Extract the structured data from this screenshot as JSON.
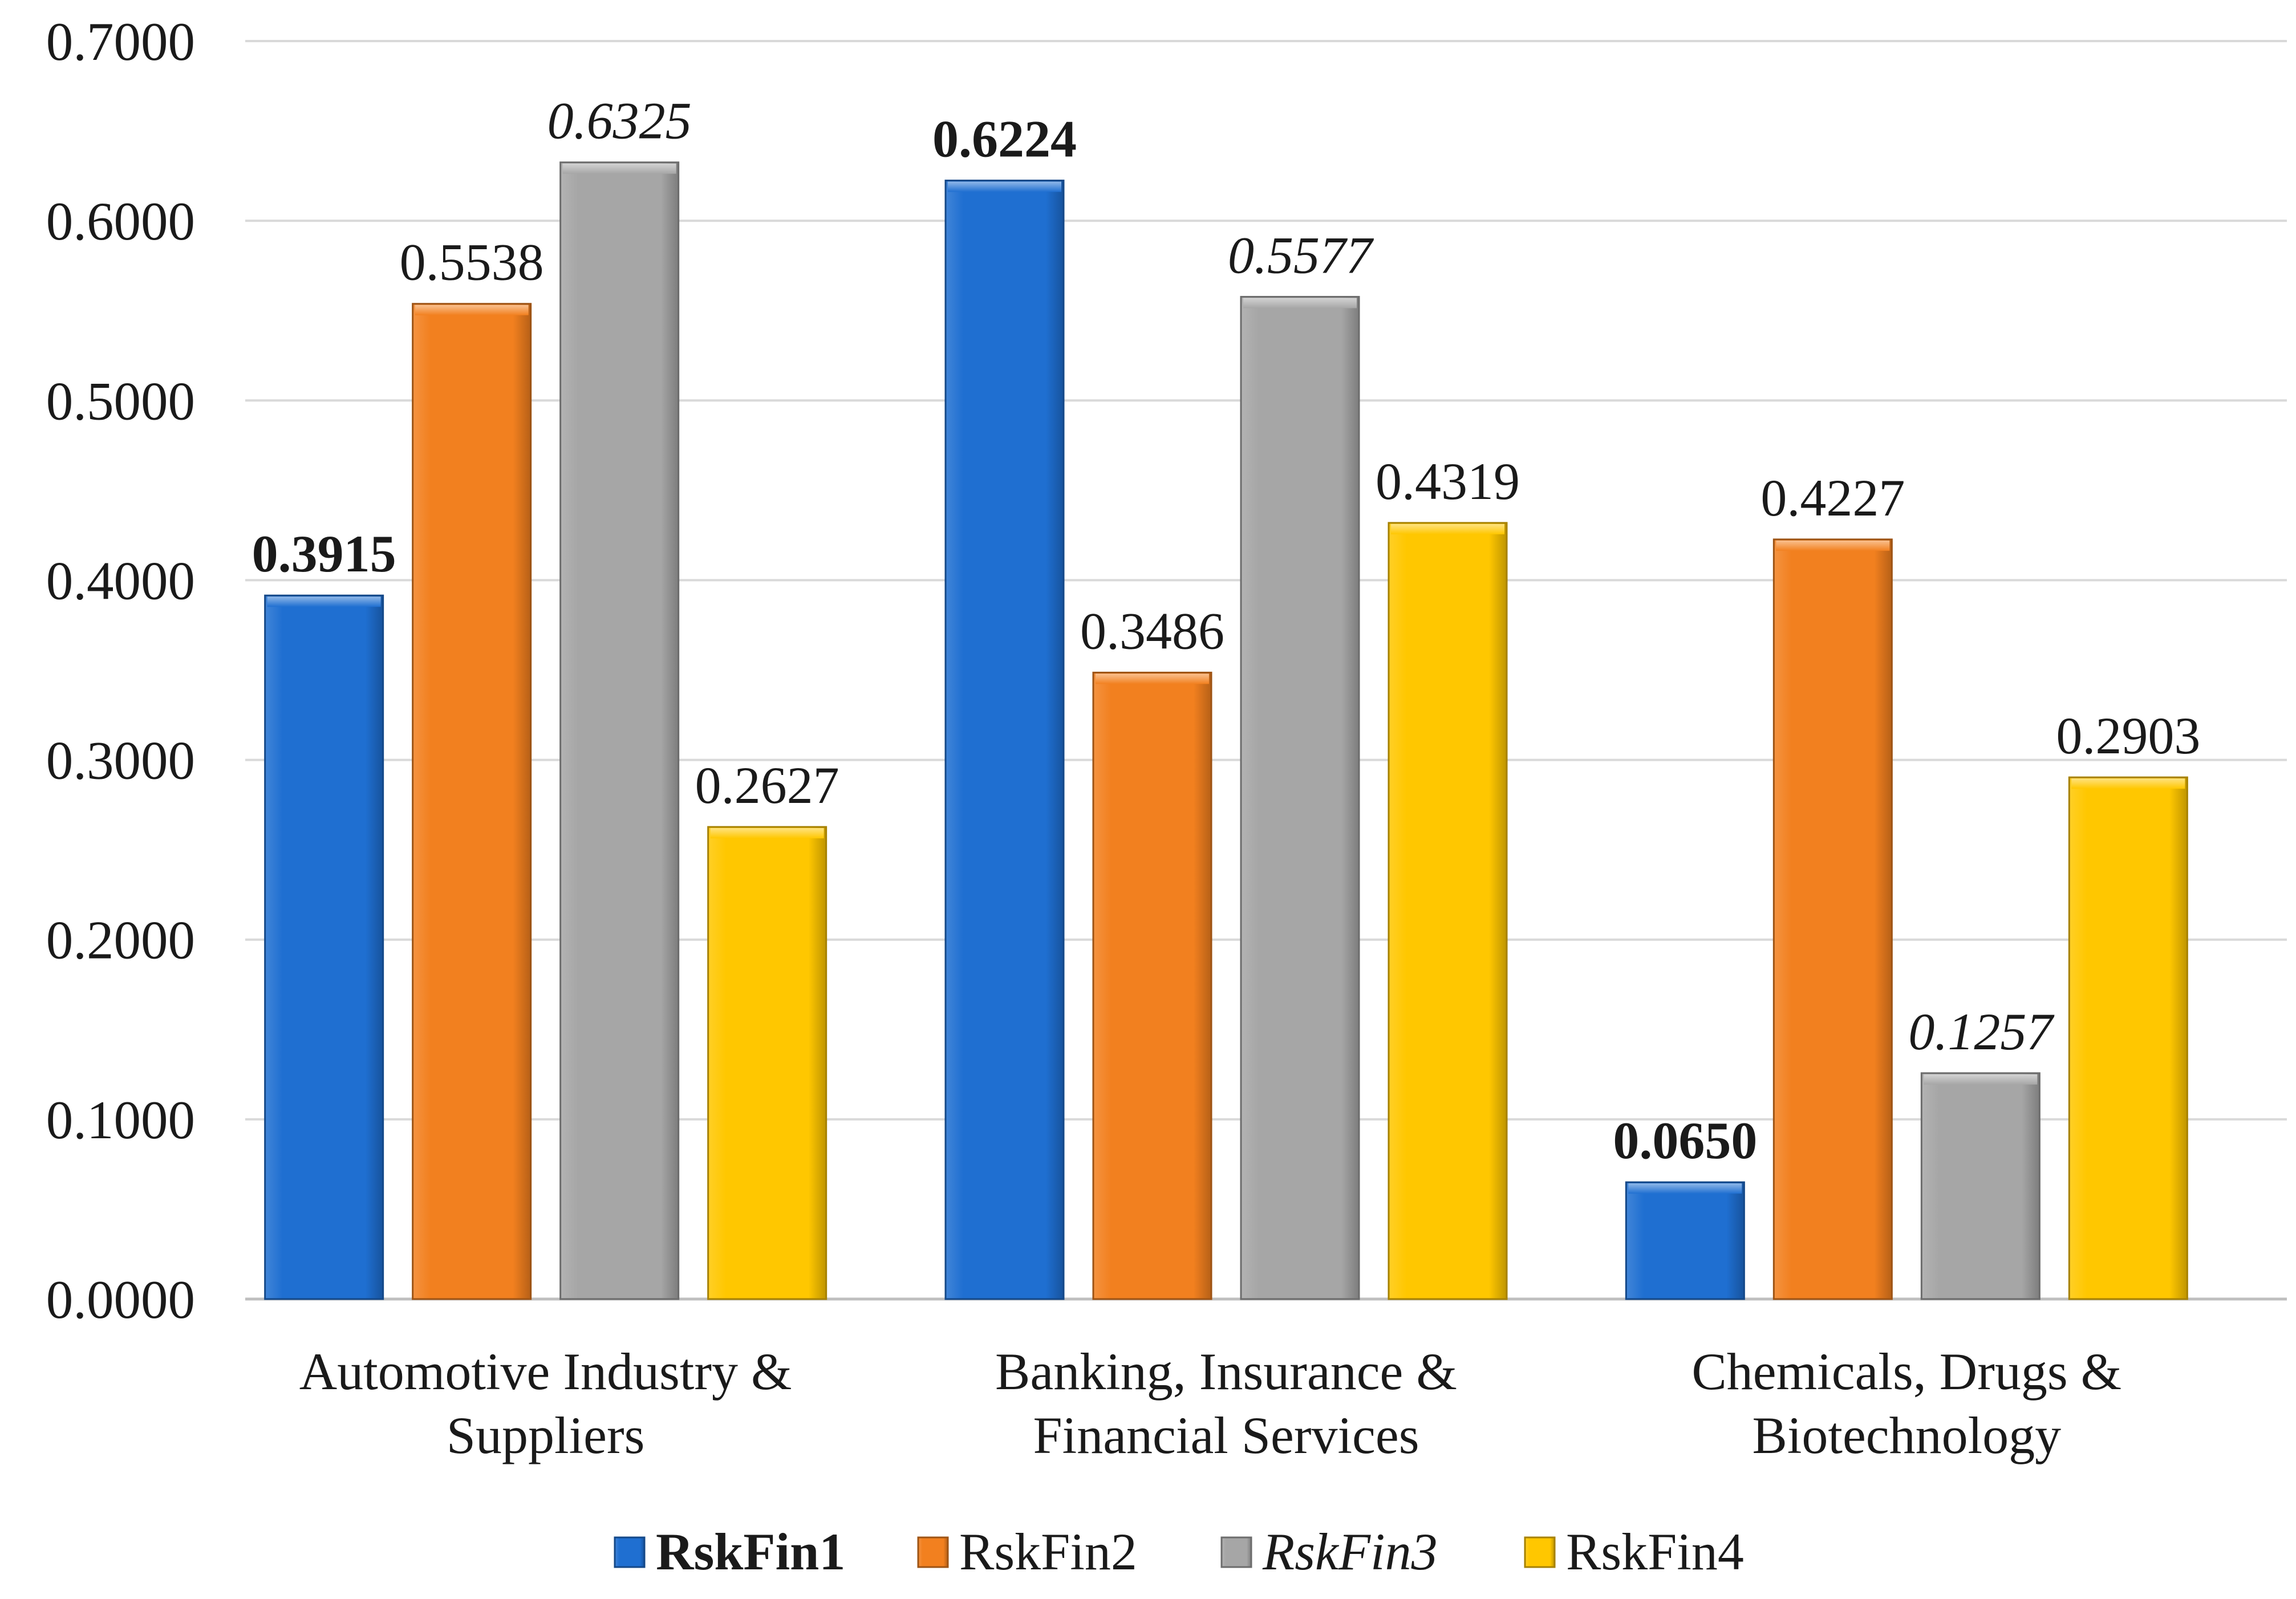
{
  "chart_data": {
    "type": "bar",
    "title": "",
    "xlabel": "",
    "ylabel": "",
    "ylim": [
      0,
      0.7
    ],
    "yticks": [
      "0.0000",
      "0.1000",
      "0.2000",
      "0.3000",
      "0.4000",
      "0.5000",
      "0.6000",
      "0.7000"
    ],
    "ytick_values": [
      0,
      0.1,
      0.2,
      0.3,
      0.4,
      0.5,
      0.6,
      0.7
    ],
    "grid": true,
    "legend_position": "bottom",
    "categories": [
      [
        "Automotive Industry &",
        "Suppliers"
      ],
      [
        "Banking, Insurance &",
        "Financial Services"
      ],
      [
        "Chemicals, Drugs &",
        "Biotechnology"
      ]
    ],
    "series": [
      {
        "name": "RskFin1",
        "color": "#1f6fd1",
        "label_style": "bold",
        "values": [
          0.3915,
          0.6224,
          0.065
        ],
        "labels": [
          "0.3915",
          "0.6224",
          "0.0650"
        ]
      },
      {
        "name": "RskFin2",
        "color": "#f2801f",
        "label_style": "normal",
        "values": [
          0.5538,
          0.3486,
          0.4227
        ],
        "labels": [
          "0.5538",
          "0.3486",
          "0.4227"
        ]
      },
      {
        "name": "RskFin3",
        "color": "#a6a6a6",
        "label_style": "italic",
        "values": [
          0.6325,
          0.5577,
          0.1257
        ],
        "labels": [
          "0.6325",
          "0.5577",
          "0.1257"
        ]
      },
      {
        "name": "RskFin4",
        "color": "#ffc700",
        "label_style": "normal",
        "values": [
          0.2627,
          0.4319,
          0.2903
        ],
        "labels": [
          "0.2627",
          "0.4319",
          "0.2903"
        ]
      }
    ]
  }
}
